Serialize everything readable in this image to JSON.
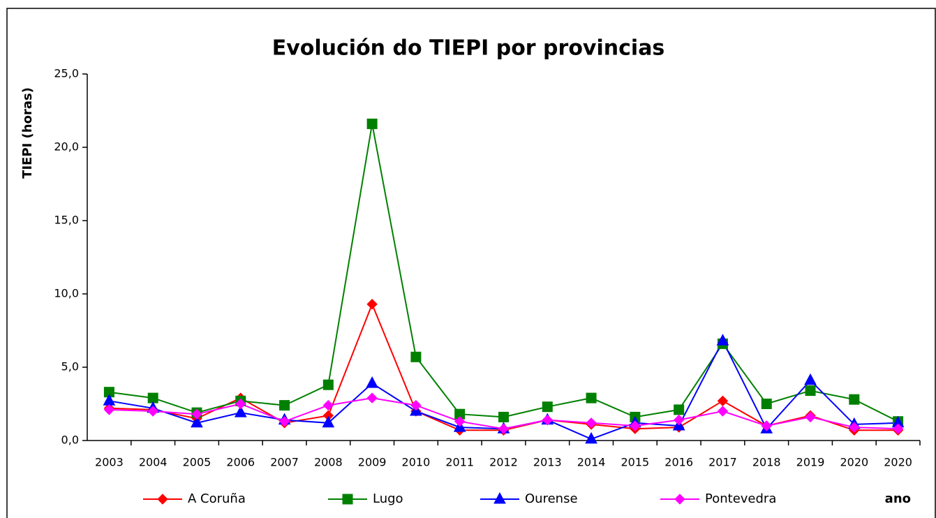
{
  "chart_data": {
    "type": "line",
    "title": "Evolución do TIEPI por provincias",
    "y_label": "TIEPI (horas)",
    "x_label": "ano",
    "categories": [
      "2003",
      "2004",
      "2005",
      "2006",
      "2007",
      "2008",
      "2009",
      "2010",
      "2011",
      "2012",
      "2013",
      "2014",
      "2015",
      "2016",
      "2017",
      "2018",
      "2019",
      "2020",
      "2020"
    ],
    "series": [
      {
        "name": "A Coruña",
        "color": "#ff0000",
        "marker": "diamond",
        "values": [
          2.2,
          2.1,
          1.5,
          2.9,
          1.2,
          1.7,
          9.3,
          2.0,
          0.7,
          0.7,
          1.4,
          1.1,
          0.8,
          0.9,
          2.7,
          1.0,
          1.7,
          0.7,
          0.7
        ]
      },
      {
        "name": "Lugo",
        "color": "#008000",
        "marker": "square",
        "values": [
          3.3,
          2.9,
          1.9,
          2.7,
          2.4,
          3.8,
          21.6,
          5.7,
          1.8,
          1.6,
          2.3,
          2.9,
          1.6,
          2.1,
          6.6,
          2.5,
          3.4,
          2.8,
          1.3
        ]
      },
      {
        "name": "Ourense",
        "color": "#0000ff",
        "marker": "triangle",
        "values": [
          2.7,
          2.2,
          1.2,
          1.9,
          1.4,
          1.2,
          3.9,
          2.0,
          0.9,
          0.8,
          1.4,
          0.1,
          1.2,
          1.0,
          6.8,
          0.8,
          4.1,
          1.1,
          1.2
        ]
      },
      {
        "name": "Pontevedra",
        "color": "#ff00ff",
        "marker": "diamond",
        "values": [
          2.1,
          2.0,
          1.8,
          2.5,
          1.3,
          2.4,
          2.9,
          2.4,
          1.3,
          0.8,
          1.4,
          1.2,
          1.0,
          1.4,
          2.0,
          1.0,
          1.6,
          0.9,
          0.8
        ]
      }
    ],
    "ylim": [
      0,
      25
    ],
    "yticks": [
      {
        "value": 0,
        "label": "0,0"
      },
      {
        "value": 5,
        "label": "5,0"
      },
      {
        "value": 10,
        "label": "10,0"
      },
      {
        "value": 15,
        "label": "15,0"
      },
      {
        "value": 20,
        "label": "20,0"
      },
      {
        "value": 25,
        "label": "25,0"
      }
    ],
    "grid": false,
    "legend": "bottom"
  }
}
